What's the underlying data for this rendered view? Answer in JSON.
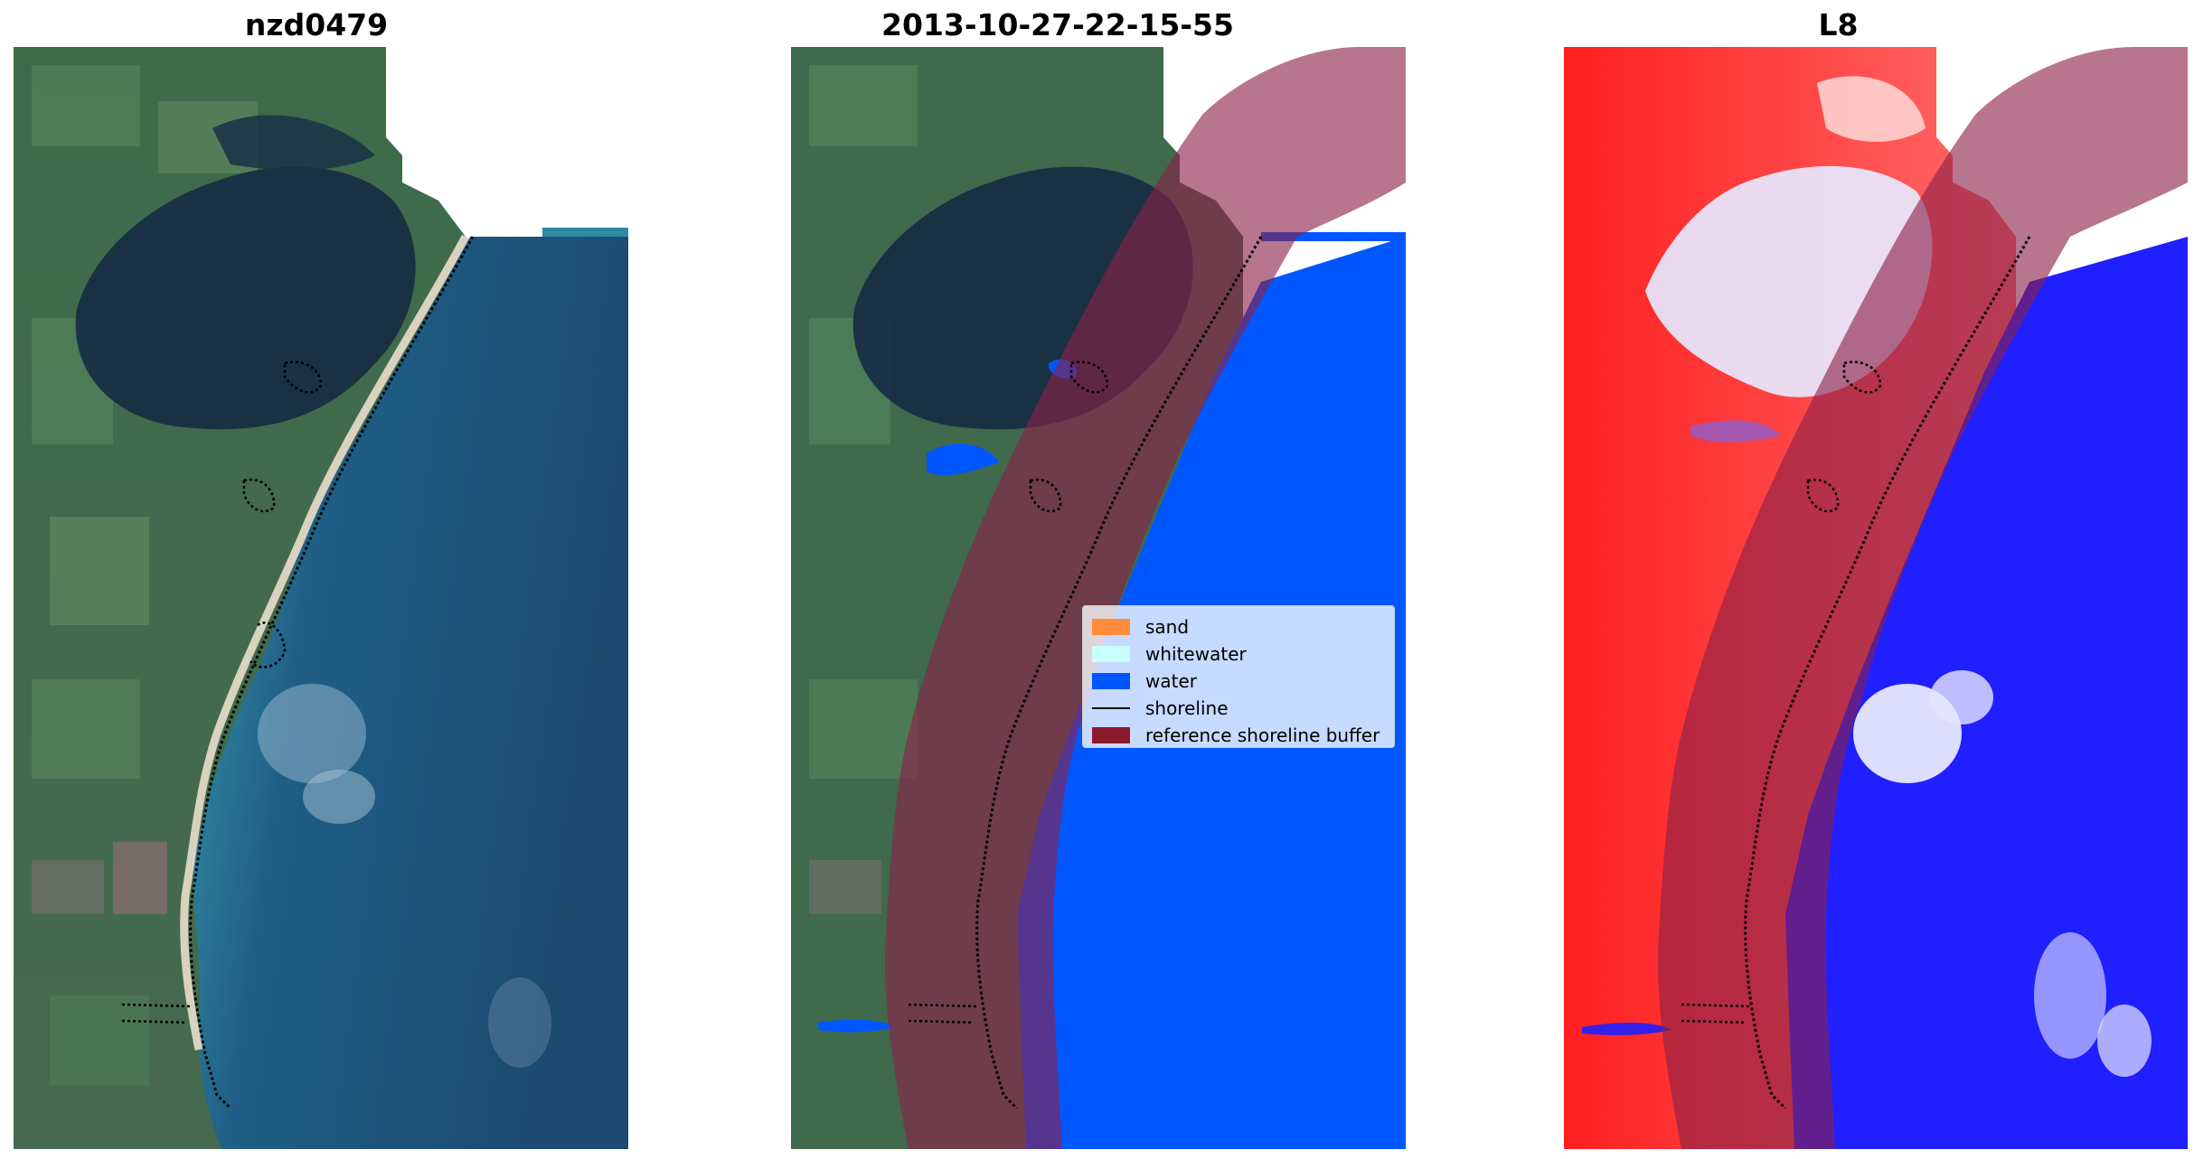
{
  "panels": [
    {
      "title": "nzd0479"
    },
    {
      "title": "2013-10-27-22-15-55"
    },
    {
      "title": "L8"
    }
  ],
  "legend": {
    "items": [
      {
        "label": "sand",
        "color": "#ff8c3a",
        "kind": "patch"
      },
      {
        "label": "whitewater",
        "color": "#c8ffff",
        "kind": "patch"
      },
      {
        "label": "water",
        "color": "#0057ff",
        "kind": "patch"
      },
      {
        "label": "shoreline",
        "color": "#000000",
        "kind": "line"
      },
      {
        "label": "reference shoreline buffer",
        "color": "#8b1a2b",
        "kind": "patch"
      }
    ]
  },
  "colors": {
    "land_rgb": "#3f6a4c",
    "forest_rgb": "#1d3347",
    "sea_rgb": "#1e4d72",
    "classified_water": "#0057ff",
    "buffer_overlay": "#8a2048",
    "index_land": "#ff2a2a",
    "index_water": "#1f1fff",
    "shoreline": "#000000"
  }
}
